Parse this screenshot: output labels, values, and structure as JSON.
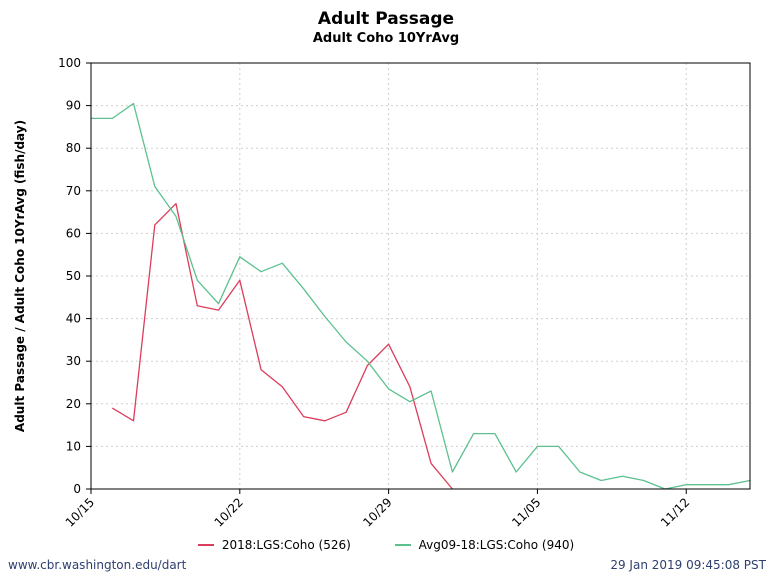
{
  "chart_data": {
    "type": "line",
    "title": "Adult Passage",
    "subtitle": "Adult Coho 10YrAvg",
    "ylabel": "Adult Passage / Adult Coho 10YrAvg (fish/day)",
    "xlabel": "",
    "ylim": [
      0,
      100
    ],
    "yticks": [
      0,
      10,
      20,
      30,
      40,
      50,
      60,
      70,
      80,
      90,
      100
    ],
    "x_range": [
      "10/15",
      "11/15"
    ],
    "xticks": [
      "10/15",
      "10/22",
      "10/29",
      "11/05",
      "11/12"
    ],
    "grid": true,
    "legend_position": "bottom",
    "series": [
      {
        "name": "2018:LGS:Coho (526)",
        "color": "#dc3d5a",
        "points": [
          {
            "x": "10/16",
            "y": 19
          },
          {
            "x": "10/17",
            "y": 16
          },
          {
            "x": "10/18",
            "y": 62
          },
          {
            "x": "10/19",
            "y": 67
          },
          {
            "x": "10/20",
            "y": 43
          },
          {
            "x": "10/21",
            "y": 42
          },
          {
            "x": "10/22",
            "y": 49
          },
          {
            "x": "10/23",
            "y": 28
          },
          {
            "x": "10/24",
            "y": 24
          },
          {
            "x": "10/25",
            "y": 17
          },
          {
            "x": "10/26",
            "y": 16
          },
          {
            "x": "10/27",
            "y": 18
          },
          {
            "x": "10/28",
            "y": 29
          },
          {
            "x": "10/29",
            "y": 34
          },
          {
            "x": "10/30",
            "y": 24
          },
          {
            "x": "10/31",
            "y": 6
          },
          {
            "x": "11/01",
            "y": 0
          }
        ]
      },
      {
        "name": "Avg09-18:LGS:Coho (940)",
        "color": "#5cc18f",
        "points": [
          {
            "x": "10/15",
            "y": 87
          },
          {
            "x": "10/16",
            "y": 87
          },
          {
            "x": "10/17",
            "y": 90.5
          },
          {
            "x": "10/18",
            "y": 71
          },
          {
            "x": "10/19",
            "y": 64
          },
          {
            "x": "10/20",
            "y": 49
          },
          {
            "x": "10/21",
            "y": 43.5
          },
          {
            "x": "10/22",
            "y": 54.5
          },
          {
            "x": "10/23",
            "y": 51
          },
          {
            "x": "10/24",
            "y": 53
          },
          {
            "x": "10/25",
            "y": 47
          },
          {
            "x": "10/26",
            "y": 40.5
          },
          {
            "x": "10/27",
            "y": 34.5
          },
          {
            "x": "10/28",
            "y": 30
          },
          {
            "x": "10/29",
            "y": 23.5
          },
          {
            "x": "10/30",
            "y": 20.5
          },
          {
            "x": "10/31",
            "y": 23
          },
          {
            "x": "11/01",
            "y": 4
          },
          {
            "x": "11/02",
            "y": 13
          },
          {
            "x": "11/03",
            "y": 13
          },
          {
            "x": "11/04",
            "y": 4
          },
          {
            "x": "11/05",
            "y": 10
          },
          {
            "x": "11/06",
            "y": 10
          },
          {
            "x": "11/07",
            "y": 4
          },
          {
            "x": "11/08",
            "y": 2
          },
          {
            "x": "11/09",
            "y": 3
          },
          {
            "x": "11/10",
            "y": 2
          },
          {
            "x": "11/11",
            "y": 0
          },
          {
            "x": "11/12",
            "y": 1
          },
          {
            "x": "11/13",
            "y": 1
          },
          {
            "x": "11/14",
            "y": 1
          },
          {
            "x": "11/15",
            "y": 2
          }
        ]
      }
    ]
  },
  "footer": {
    "source": "www.cbr.washington.edu/dart",
    "timestamp": "29 Jan 2019 09:45:08 PST"
  }
}
